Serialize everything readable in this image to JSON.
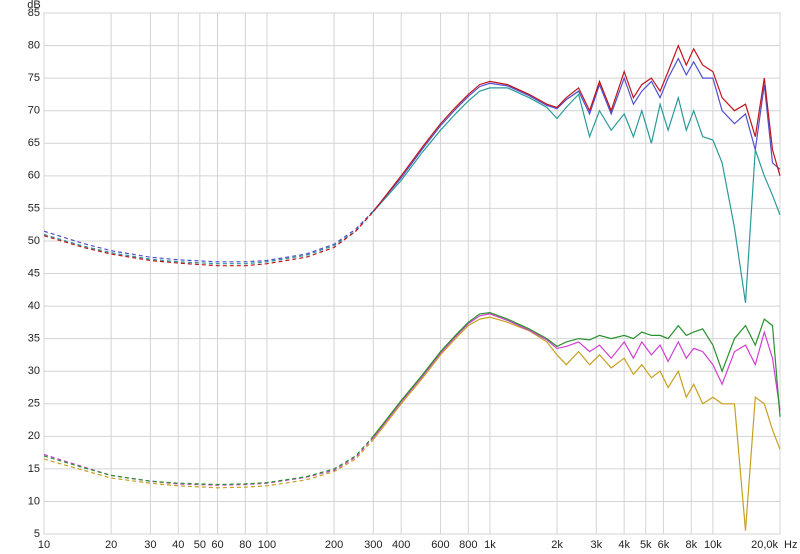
{
  "chart_data": {
    "type": "line",
    "y_label": "dB",
    "x_label": "Hz",
    "log_x": true,
    "grid": true,
    "solid_from": 300,
    "xlim": [
      10,
      20000
    ],
    "ylim": [
      5,
      85
    ],
    "xticks": [
      10,
      20,
      30,
      40,
      50,
      60,
      80,
      100,
      200,
      300,
      400,
      600,
      800,
      {
        "value": 1000,
        "label": "1k"
      },
      {
        "value": 2000,
        "label": "2k"
      },
      {
        "value": 3000,
        "label": "3k"
      },
      {
        "value": 4000,
        "label": "4k"
      },
      {
        "value": 5000,
        "label": "5k"
      },
      {
        "value": 6000,
        "label": "6k"
      },
      {
        "value": 8000,
        "label": "8k"
      },
      {
        "value": 10000,
        "label": "10k"
      },
      {
        "value": 20000,
        "label": "20,0k"
      }
    ],
    "yticks": [
      5,
      10,
      15,
      20,
      25,
      30,
      35,
      40,
      45,
      50,
      55,
      60,
      65,
      70,
      75,
      80,
      85
    ],
    "x": [
      10,
      15,
      20,
      30,
      40,
      60,
      80,
      100,
      150,
      200,
      250,
      300,
      400,
      500,
      600,
      700,
      800,
      900,
      1000,
      1200,
      1500,
      1800,
      2000,
      2200,
      2500,
      2800,
      3100,
      3500,
      4000,
      4400,
      4800,
      5300,
      5800,
      6300,
      7000,
      7600,
      8200,
      9000,
      10000,
      11000,
      12500,
      14000,
      15500,
      17000,
      18500,
      20000
    ],
    "series": [
      {
        "color": "#2a9a9a",
        "values": [
          51,
          49.2,
          48.2,
          47.2,
          46.8,
          46.5,
          46.5,
          46.8,
          47.8,
          49.3,
          51.5,
          54.5,
          59.3,
          63.7,
          67,
          69.5,
          71.5,
          73,
          73.5,
          73.5,
          72,
          70.5,
          68.8,
          70.5,
          72.5,
          66,
          70,
          67,
          69.5,
          66,
          70,
          65,
          71,
          67,
          72,
          67,
          70,
          66,
          65.5,
          62,
          52,
          40.5,
          64,
          60,
          57,
          54
        ]
      },
      {
        "color": "#5050d0",
        "values": [
          51.5,
          49.6,
          48.5,
          47.5,
          47.1,
          46.8,
          46.8,
          47,
          48,
          49.5,
          51.8,
          54.6,
          59.7,
          64.2,
          67.7,
          70.2,
          72.2,
          73.7,
          74.2,
          73.8,
          72.3,
          70.8,
          70.3,
          71.7,
          73,
          69.5,
          74,
          69.5,
          75,
          71,
          73,
          74.5,
          72,
          75,
          78,
          75.5,
          77.5,
          75,
          75,
          70,
          68,
          69.5,
          64,
          74,
          62,
          61
        ]
      },
      {
        "color": "#c0141c",
        "values": [
          50.8,
          49,
          48,
          47,
          46.6,
          46.2,
          46.2,
          46.5,
          47.5,
          49,
          51.5,
          54.5,
          60,
          64.5,
          68,
          70.5,
          72.5,
          74,
          74.5,
          74,
          72.5,
          71,
          70.5,
          72,
          73.5,
          70,
          74.5,
          70,
          76,
          72,
          74,
          75,
          73,
          76,
          80,
          77,
          79.5,
          77,
          76,
          72,
          70,
          71,
          66,
          75,
          64,
          60
        ]
      },
      {
        "color": "#c8a020",
        "values": [
          16.5,
          14.8,
          13.6,
          12.8,
          12.4,
          12.1,
          12.2,
          12.4,
          13.3,
          14.6,
          16.5,
          19.5,
          25,
          29,
          32.5,
          35,
          37,
          38,
          38.3,
          37.5,
          36.2,
          34.5,
          32.5,
          31,
          33,
          31,
          32.5,
          30.5,
          32,
          29.5,
          31,
          29,
          30,
          27.5,
          30,
          26,
          28,
          25,
          26,
          25,
          25,
          5.5,
          26,
          25,
          21,
          18
        ]
      },
      {
        "color": "#d040d0",
        "values": [
          17.2,
          15.3,
          14,
          13.1,
          12.7,
          12.5,
          12.6,
          12.8,
          13.7,
          14.8,
          16.8,
          19.8,
          25.3,
          29.3,
          32.8,
          35.3,
          37.3,
          38.5,
          38.8,
          37.8,
          36.3,
          34.8,
          33.5,
          33.8,
          34.5,
          33,
          34,
          32,
          34.5,
          32,
          34.5,
          32.5,
          34,
          31.5,
          34.5,
          32,
          33.5,
          33,
          31,
          28,
          33,
          34,
          31,
          36,
          32,
          24
        ]
      },
      {
        "color": "#2a9030",
        "values": [
          17,
          15.2,
          14,
          13.1,
          12.8,
          12.6,
          12.7,
          12.9,
          13.8,
          15,
          17,
          20,
          25.5,
          29.5,
          33,
          35.5,
          37.5,
          38.8,
          39,
          38,
          36.5,
          35,
          33.8,
          34.5,
          35,
          34.8,
          35.5,
          35,
          35.5,
          35,
          36,
          35.5,
          35.5,
          35,
          37,
          35.5,
          36,
          36.5,
          34,
          30,
          35,
          37,
          34,
          38,
          37,
          23
        ]
      }
    ]
  }
}
